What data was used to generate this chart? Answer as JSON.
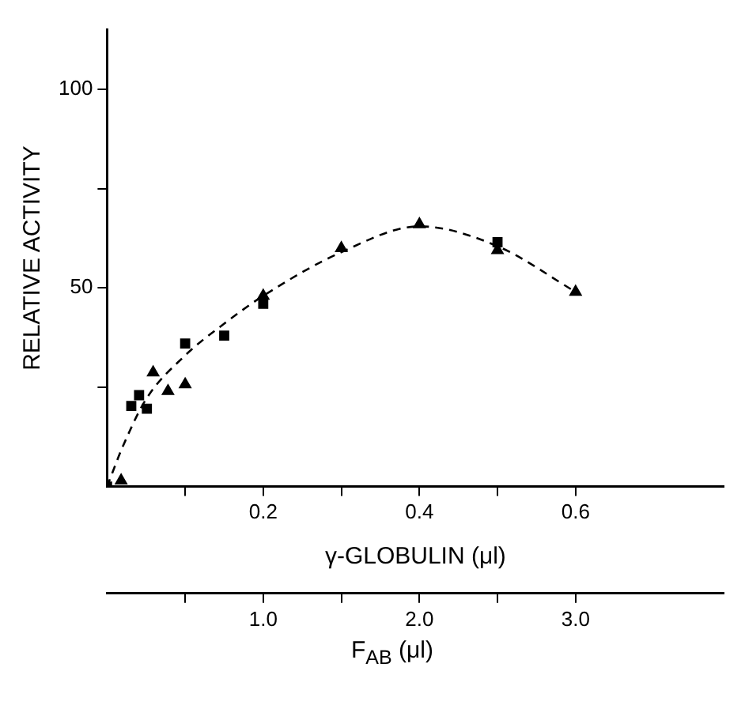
{
  "chart_data": {
    "type": "scatter",
    "xlabel": "γ-GLOBULIN (μl)",
    "ylabel": "RELATIVE ACTIVITY",
    "x2label": "F$_{AB}$ (μl)",
    "xlim": [
      0,
      0.79
    ],
    "xticks": [
      {
        "value": 0.1,
        "label": null
      },
      {
        "value": 0.2,
        "label": "0.2"
      },
      {
        "value": 0.3,
        "label": null
      },
      {
        "value": 0.4,
        "label": "0.4"
      },
      {
        "value": 0.5,
        "label": null
      },
      {
        "value": 0.6,
        "label": "0.6"
      }
    ],
    "x2lim": [
      0,
      3.95
    ],
    "x2ticks": [
      {
        "value": 0.5,
        "label": null
      },
      {
        "value": 1,
        "label": "1.0"
      },
      {
        "value": 1.5,
        "label": null
      },
      {
        "value": 2,
        "label": "2.0"
      },
      {
        "value": 2.5,
        "label": null
      },
      {
        "value": 3,
        "label": "3.0"
      }
    ],
    "ylim": [
      0,
      115
    ],
    "yticks": [
      {
        "value": 25,
        "label": null
      },
      50,
      {
        "value": 75,
        "label": null
      },
      100
    ],
    "grid": false,
    "legend": false,
    "series": [
      {
        "type": "scatter",
        "marker": "triangle",
        "color": "#000000",
        "x": [
          0.018,
          0.059,
          0.078,
          0.1,
          0.2,
          0.3,
          0.4,
          0.5,
          0.6
        ],
        "values": [
          1.5,
          28.7,
          24,
          25.7,
          48,
          60,
          66,
          59.5,
          49
        ]
      },
      {
        "type": "scatter",
        "marker": "square",
        "color": "#000000",
        "x": [
          0,
          0.031,
          0.041,
          0.051,
          0.1,
          0.15,
          0.2,
          0.5
        ],
        "values": [
          0,
          20.3,
          23,
          19.6,
          36,
          38,
          46,
          61.5
        ]
      },
      {
        "type": "line",
        "marker": "none",
        "line_style": "dashed",
        "color": "#000000",
        "x": [
          0,
          0.02,
          0.05,
          0.1,
          0.15,
          0.2,
          0.3,
          0.4,
          0.5,
          0.6
        ],
        "values": [
          0,
          10,
          22,
          33,
          41,
          48,
          59,
          65.5,
          60.5,
          49
        ]
      }
    ]
  }
}
